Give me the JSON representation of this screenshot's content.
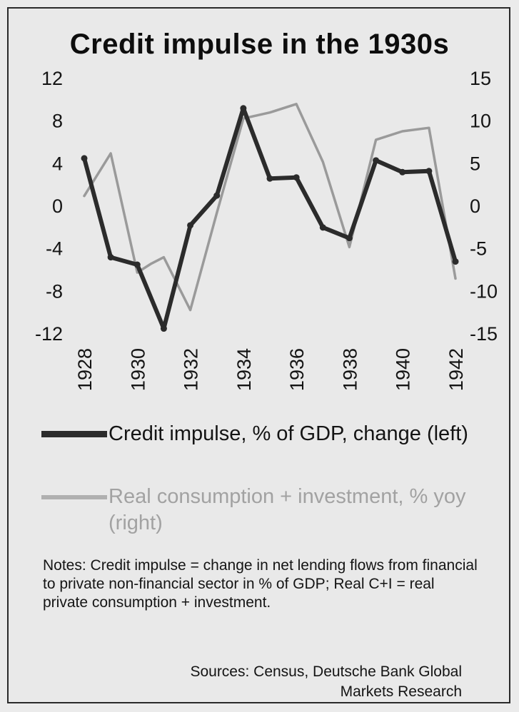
{
  "chart_data": {
    "type": "line",
    "title": "Credit impulse in the 1930s",
    "x": [
      1928,
      1929,
      1930,
      1931,
      1932,
      1933,
      1934,
      1935,
      1936,
      1937,
      1938,
      1939,
      1940,
      1941,
      1942
    ],
    "x_tick_labels": [
      "1928",
      "1930",
      "1932",
      "1934",
      "1936",
      "1938",
      "1940",
      "1942"
    ],
    "y_left": {
      "ylim": [
        -12,
        12
      ],
      "ticks": [
        "12",
        "8",
        "4",
        "0",
        "-4",
        "-8",
        "-12"
      ]
    },
    "y_right": {
      "ylim": [
        -15,
        15
      ],
      "ticks": [
        "15",
        "10",
        "5",
        "0",
        "-5",
        "-10",
        "-15"
      ]
    },
    "series": [
      {
        "name": "Credit impulse, % of GDP, change (left)",
        "axis": "left",
        "color": "#2b2b2b",
        "values": [
          4.5,
          -4.8,
          -5.5,
          -11.5,
          -1.8,
          1.0,
          9.2,
          2.6,
          2.7,
          -2.0,
          -3.0,
          4.3,
          3.2,
          3.3,
          -5.2
        ]
      },
      {
        "name": "Real consumption + investment, % yoy (right)",
        "axis": "right",
        "color": "#9a9a9a",
        "x": [
          1928,
          1929,
          1930,
          1930.5,
          1931,
          1932,
          1933,
          1934,
          1935,
          1936,
          1937,
          1938,
          1939,
          1940,
          1941,
          1942
        ],
        "values": [
          1.2,
          6.2,
          -7.8,
          -6.8,
          -6.0,
          -12.2,
          -0.8,
          10.3,
          11.0,
          12.0,
          5.2,
          -4.8,
          7.8,
          8.8,
          9.2,
          -8.5
        ]
      }
    ],
    "legend_placement": "bottom",
    "grid": false
  },
  "legend": [
    {
      "label": "Credit impulse, % of GDP, change (left)",
      "color": "#2b2b2b"
    },
    {
      "label": "Real consumption + investment, % yoy (right)",
      "color": "#a8a8a8"
    }
  ],
  "notes": "Notes: Credit impulse = change in net lending flows from financial to private non-financial sector in % of GDP; Real C+I = real private consumption + investment.",
  "sources": "Sources: Census, Deutsche Bank Global Markets Research"
}
